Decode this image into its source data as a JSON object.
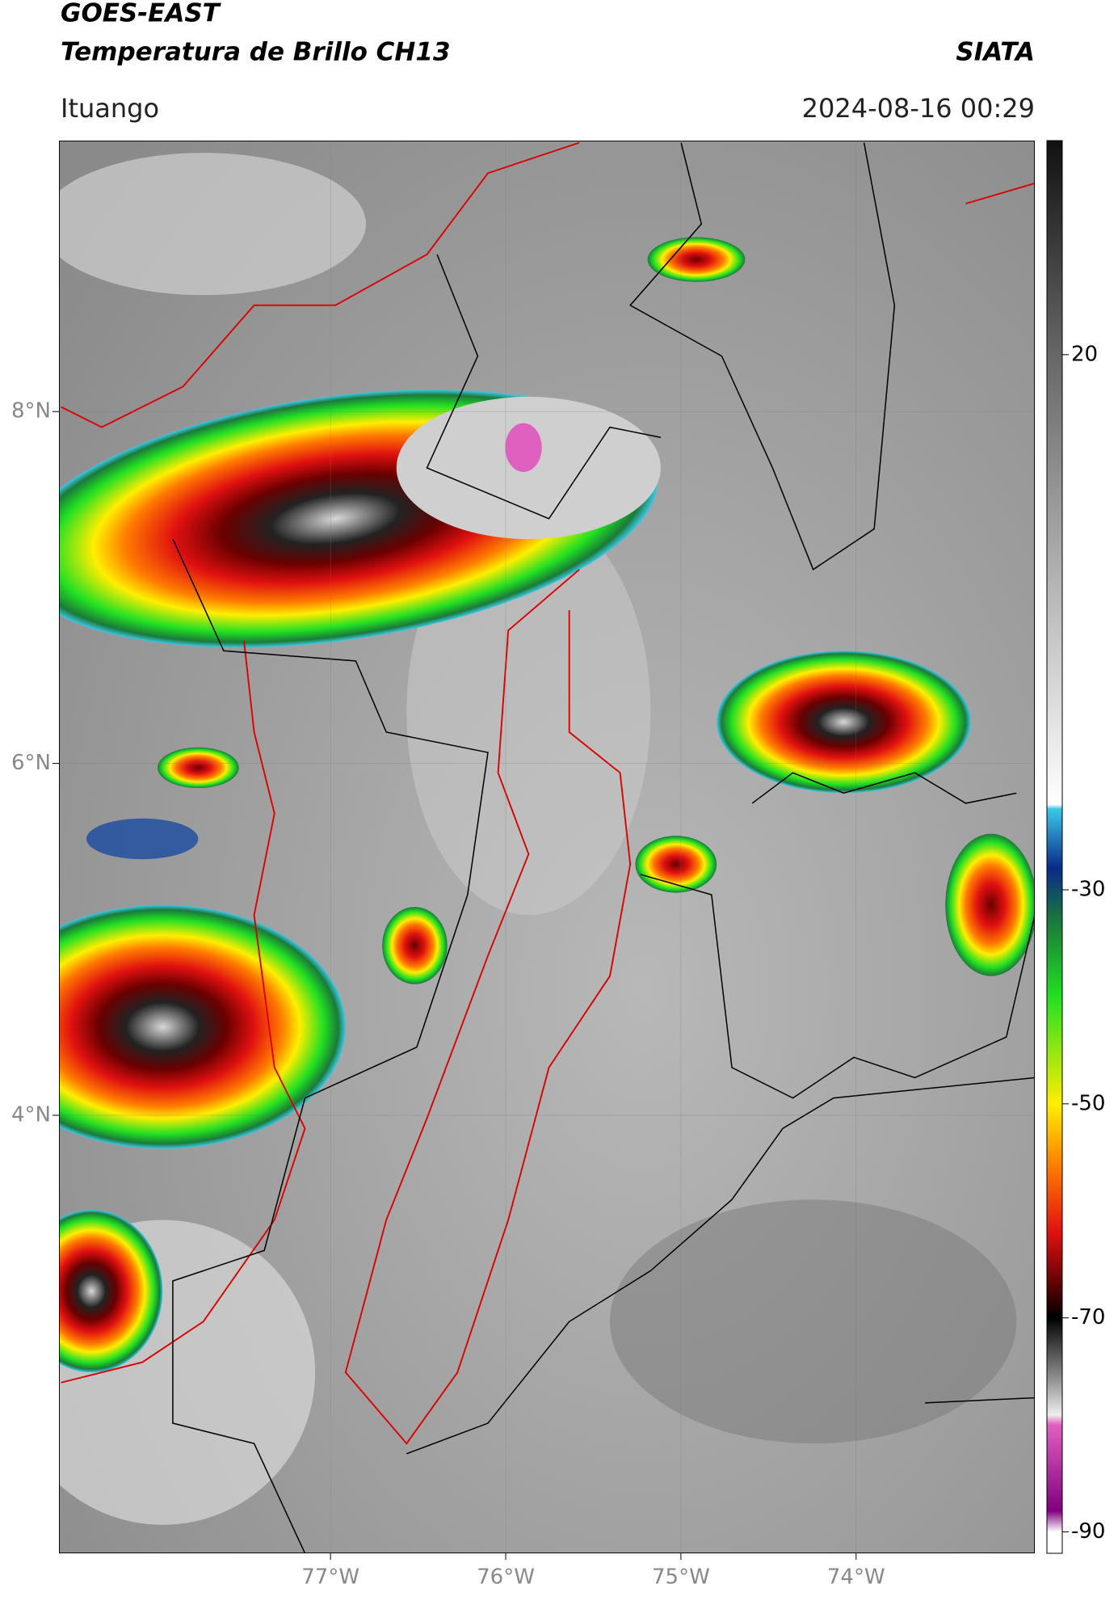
{
  "header": {
    "title": "GOES-EAST",
    "subtitle": "Temperatura de Brillo CH13",
    "source": "SIATA",
    "region": "Ituango",
    "timestamp": "2024-08-16 00:29"
  },
  "map": {
    "lon_range": [
      -78.55,
      -72.98
    ],
    "lat_range": [
      1.51,
      9.54
    ],
    "lon_ticks": [
      {
        "value": -77,
        "label": "77°W"
      },
      {
        "value": -76,
        "label": "76°W"
      },
      {
        "value": -75,
        "label": "75°W"
      },
      {
        "value": -74,
        "label": "74°W"
      }
    ],
    "lat_ticks": [
      {
        "value": 8,
        "label": "8°N"
      },
      {
        "value": 6,
        "label": "6°N"
      },
      {
        "value": 4,
        "label": "4°N"
      }
    ]
  },
  "colorbar": {
    "range": [
      -92,
      40
    ],
    "ticks": [
      20,
      -30,
      -50,
      -70,
      -90
    ]
  }
}
